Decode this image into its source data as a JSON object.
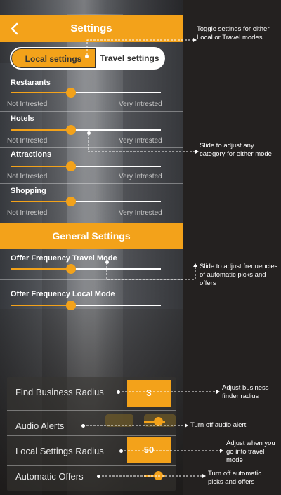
{
  "header": {
    "title": "Settings",
    "back_icon": "chevron-left-icon"
  },
  "toggle": {
    "local_label": "Local settings",
    "travel_label": "Travel settings",
    "selected": "Local settings"
  },
  "categories": [
    {
      "label": "Restarants",
      "min_label": "Not Intrested",
      "max_label": "Very Intrested",
      "value": 0.4
    },
    {
      "label": "Hotels",
      "min_label": "Not Intrested",
      "max_label": "Very Intrested",
      "value": 0.4
    },
    {
      "label": "Attractions",
      "min_label": "Not Intrested",
      "max_label": "Very Intrested",
      "value": 0.4
    },
    {
      "label": "Shopping",
      "min_label": "Not Intrested",
      "max_label": "Very Intrested",
      "value": 0.4
    }
  ],
  "general": {
    "title": "General Settings",
    "sliders": [
      {
        "label": "Offer Frequency Travel Mode",
        "value": 0.4
      },
      {
        "label": "Offer Frequency Local Mode",
        "value": 0.4
      }
    ]
  },
  "panel": {
    "find_radius": {
      "label": "Find Business Radius",
      "value": "3"
    },
    "audio_alerts": {
      "label": "Audio Alerts"
    },
    "local_radius": {
      "label": "Local Settings Radius",
      "value": "50"
    },
    "automatic_offers": {
      "label": "Automatic Offers"
    }
  },
  "annotations": {
    "toggle": "Toggle settings for either Local or Travel modes",
    "slider": "Slide to adjust any category for either mode",
    "frequency": "Slide to adjust frequencies of automatic picks and offers",
    "business_radius": "Adjust business finder radius",
    "audio": "Turn off audio alert",
    "local_radius": "Adjust when you go into travel mode",
    "offers": "Turn off automatic picks and offers"
  },
  "colors": {
    "accent": "#f3a21a",
    "text": "#ffffff",
    "muted": "#c9c9c9"
  }
}
